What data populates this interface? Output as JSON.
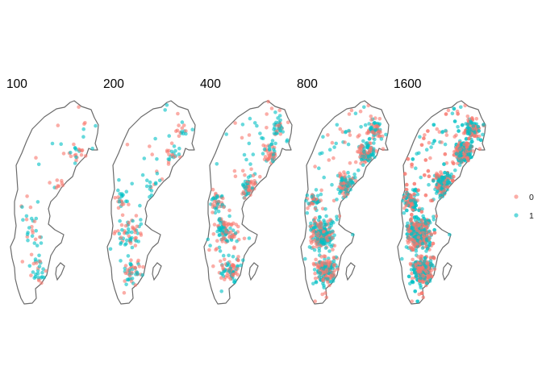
{
  "figure": {
    "panels": [
      {
        "title": "100",
        "n": 100
      },
      {
        "title": "200",
        "n": 200
      },
      {
        "title": "400",
        "n": 400
      },
      {
        "title": "800",
        "n": 800
      },
      {
        "title": "1600",
        "n": 1600
      }
    ],
    "legend": {
      "title": "",
      "entries": [
        {
          "label": "0",
          "color": "#F8766D"
        },
        {
          "label": "1",
          "color": "#00BFC4"
        }
      ],
      "placement": "right"
    },
    "point_opacity": 0.6,
    "outline_color": "#6b6b6b",
    "map_subject": "Sweden"
  }
}
